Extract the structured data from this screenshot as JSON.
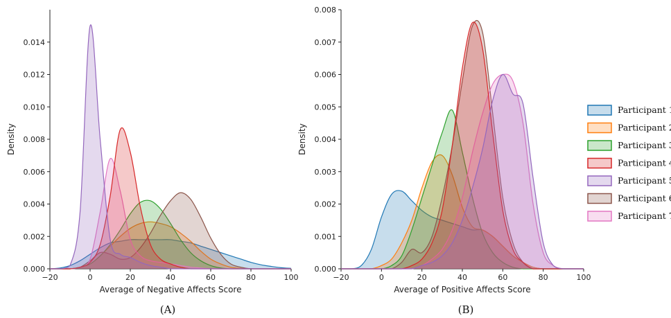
{
  "chart_data": [
    {
      "type": "area",
      "subtype": "kde-density",
      "panel_label": "(A)",
      "xlabel": "Average of Negative Affects Score",
      "ylabel": "Density",
      "xlim": [
        -20,
        100
      ],
      "ylim": [
        0,
        0.016
      ],
      "xticks": [
        -20,
        0,
        20,
        40,
        60,
        80,
        100
      ],
      "xtick_labels": [
        "−20",
        "0",
        "20",
        "40",
        "60",
        "80",
        "100"
      ],
      "yticks": [
        0,
        0.002,
        0.004,
        0.006,
        0.008,
        0.01,
        0.012,
        0.014
      ],
      "ytick_labels": [
        "0.000",
        "0.002",
        "0.004",
        "0.006",
        "0.008",
        "0.010",
        "0.012",
        "0.014"
      ],
      "x": [
        -20,
        -15,
        -10,
        -5,
        0,
        5,
        10,
        15,
        20,
        25,
        30,
        35,
        40,
        45,
        50,
        55,
        60,
        65,
        70,
        75,
        80,
        85,
        90,
        95,
        100
      ],
      "series": [
        {
          "name": "Participant 1",
          "color": "#1f77b4",
          "values": [
            0,
            5e-05,
            0.0002,
            0.0005,
            0.0009,
            0.0013,
            0.0016,
            0.0017,
            0.0018,
            0.0018,
            0.0018,
            0.0018,
            0.0018,
            0.0017,
            0.0016,
            0.0014,
            0.0012,
            0.001,
            0.0008,
            0.0006,
            0.0004,
            0.00025,
            0.00015,
            7e-05,
            3e-05
          ]
        },
        {
          "name": "Participant 2",
          "color": "#ff7f0e",
          "values": [
            0,
            0,
            0,
            0.0001,
            0.0003,
            0.0008,
            0.0014,
            0.002,
            0.0025,
            0.0028,
            0.0029,
            0.0028,
            0.0026,
            0.0022,
            0.0017,
            0.0011,
            0.0006,
            0.0003,
            0.0001,
            3e-05,
            0,
            0,
            0,
            0,
            0
          ]
        },
        {
          "name": "Participant 3",
          "color": "#2ca02c",
          "values": [
            0,
            0,
            0,
            0.0001,
            0.0003,
            0.0008,
            0.0015,
            0.0024,
            0.0034,
            0.0041,
            0.0042,
            0.0037,
            0.0028,
            0.0018,
            0.001,
            0.0005,
            0.0002,
            5e-05,
            0,
            0,
            0,
            0,
            0,
            0,
            0
          ]
        },
        {
          "name": "Participant 4",
          "color": "#d62728",
          "values": [
            0,
            0,
            0,
            0.0001,
            0.0004,
            0.0015,
            0.0045,
            0.0086,
            0.0072,
            0.0038,
            0.0015,
            0.0006,
            0.0003,
            0.0001,
            0,
            0,
            0,
            0,
            0,
            0,
            0,
            0,
            0,
            0,
            0
          ]
        },
        {
          "name": "Participant 5",
          "color": "#9467bd",
          "values": [
            0,
            0,
            0.0002,
            0.0035,
            0.015,
            0.008,
            0.0018,
            0.0009,
            0.0007,
            0.0004,
            0.0002,
            0.0001,
            0,
            0,
            0,
            0,
            0,
            0,
            0,
            0,
            0,
            0,
            0,
            0,
            0
          ]
        },
        {
          "name": "Participant 6",
          "color": "#8c564b",
          "values": [
            0,
            0,
            0,
            0.0001,
            0.0005,
            0.001,
            0.0009,
            0.0006,
            0.0007,
            0.0013,
            0.0022,
            0.0033,
            0.0042,
            0.0047,
            0.0043,
            0.0032,
            0.0019,
            0.0009,
            0.0003,
            0.0001,
            0,
            0,
            0,
            0,
            0
          ]
        },
        {
          "name": "Participant 7",
          "color": "#e377c2",
          "values": [
            0,
            0,
            0,
            0.0001,
            0.0006,
            0.0035,
            0.0068,
            0.0048,
            0.0018,
            0.0008,
            0.0005,
            0.0004,
            0.0003,
            0.0002,
            0.0001,
            5e-05,
            0,
            0,
            0,
            0,
            0,
            0,
            0,
            0,
            0
          ]
        }
      ]
    },
    {
      "type": "area",
      "subtype": "kde-density",
      "panel_label": "(B)",
      "xlabel": "Average of Positive Affects Score",
      "ylabel": "Density",
      "xlim": [
        -20,
        100
      ],
      "ylim": [
        0,
        0.008
      ],
      "xticks": [
        -20,
        0,
        20,
        40,
        60,
        80,
        100
      ],
      "xtick_labels": [
        "−20",
        "0",
        "20",
        "40",
        "60",
        "80",
        "100"
      ],
      "yticks": [
        0,
        0.001,
        0.002,
        0.003,
        0.004,
        0.005,
        0.006,
        0.007,
        0.008
      ],
      "ytick_labels": [
        "0.000",
        "0.001",
        "0.002",
        "0.003",
        "0.004",
        "0.005",
        "0.006",
        "0.007",
        "0.008"
      ],
      "x": [
        -20,
        -15,
        -10,
        -5,
        0,
        5,
        10,
        15,
        20,
        25,
        30,
        35,
        40,
        45,
        50,
        55,
        60,
        65,
        70,
        75,
        80,
        85,
        90,
        95,
        100
      ],
      "series": [
        {
          "name": "Participant 1",
          "color": "#1f77b4",
          "values": [
            0,
            0,
            0.0001,
            0.0006,
            0.0016,
            0.0023,
            0.0024,
            0.0021,
            0.0018,
            0.0016,
            0.0015,
            0.0014,
            0.0013,
            0.0012,
            0.0012,
            0.001,
            0.0007,
            0.0004,
            0.0002,
            5e-05,
            0,
            0,
            0,
            0,
            0
          ]
        },
        {
          "name": "Participant 2",
          "color": "#ff7f0e",
          "values": [
            0,
            0,
            0,
            0,
            0.0001,
            0.0003,
            0.0008,
            0.0015,
            0.0025,
            0.0033,
            0.0035,
            0.0029,
            0.0019,
            0.0013,
            0.0012,
            0.001,
            0.0007,
            0.0004,
            0.0002,
            5e-05,
            0,
            0,
            0,
            0,
            0
          ]
        },
        {
          "name": "Participant 3",
          "color": "#2ca02c",
          "values": [
            0,
            0,
            0,
            0,
            0,
            0.0001,
            0.0004,
            0.0012,
            0.0022,
            0.0032,
            0.0042,
            0.0049,
            0.0036,
            0.0022,
            0.0011,
            0.0005,
            0.0002,
            5e-05,
            0,
            0,
            0,
            0,
            0,
            0,
            0
          ]
        },
        {
          "name": "Participant 4",
          "color": "#d62728",
          "values": [
            0,
            0,
            0,
            0,
            0,
            0,
            0,
            0.0001,
            0.0003,
            0.0008,
            0.0018,
            0.0038,
            0.0062,
            0.0076,
            0.0068,
            0.0042,
            0.0018,
            0.0006,
            0.0002,
            0,
            0,
            0,
            0,
            0,
            0
          ]
        },
        {
          "name": "Participant 5",
          "color": "#9467bd",
          "values": [
            0,
            0,
            0,
            0,
            0,
            0,
            0,
            0,
            0.0001,
            0.0002,
            0.0004,
            0.0008,
            0.0015,
            0.0025,
            0.0037,
            0.0052,
            0.006,
            0.0054,
            0.0051,
            0.0028,
            0.0008,
            0.0001,
            0,
            0,
            0
          ]
        },
        {
          "name": "Participant 6",
          "color": "#8c564b",
          "values": [
            0,
            0,
            0,
            0,
            0,
            0,
            0.0002,
            0.0006,
            0.0005,
            0.001,
            0.0022,
            0.0038,
            0.0058,
            0.0075,
            0.0073,
            0.0048,
            0.0022,
            0.0008,
            0.0002,
            0,
            0,
            0,
            0,
            0,
            0
          ]
        },
        {
          "name": "Participant 7",
          "color": "#e377c2",
          "values": [
            0,
            0,
            0,
            0,
            0,
            0,
            0,
            0,
            0.0001,
            0.0003,
            0.0006,
            0.0012,
            0.0022,
            0.0036,
            0.0048,
            0.0057,
            0.006,
            0.0058,
            0.0045,
            0.002,
            0.0005,
            0.0001,
            0,
            0,
            0
          ]
        }
      ]
    }
  ],
  "legend": {
    "placement": "right",
    "items": [
      {
        "label": "Participant 1",
        "color": "#1f77b4"
      },
      {
        "label": "Participant 2",
        "color": "#ff7f0e"
      },
      {
        "label": "Participant 3",
        "color": "#2ca02c"
      },
      {
        "label": "Participant 4",
        "color": "#d62728"
      },
      {
        "label": "Participant 5",
        "color": "#9467bd"
      },
      {
        "label": "Participant 6",
        "color": "#8c564b"
      },
      {
        "label": "Participant 7",
        "color": "#e377c2"
      }
    ]
  }
}
